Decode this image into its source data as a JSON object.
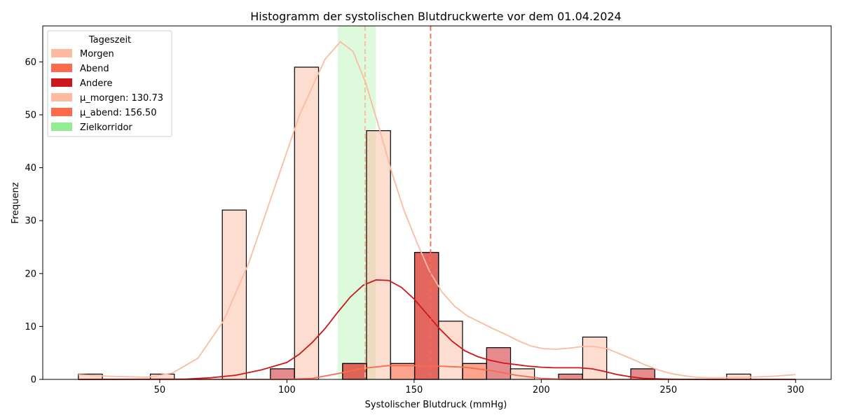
{
  "chart_data": {
    "type": "bar",
    "title": "Histogramm der systolischen Blutdruckwerte vor dem 01.04.2024",
    "xlabel": "Systolischer Blutdruck (mmHg)",
    "ylabel": "Frequenz",
    "xlim": [
      4,
      314
    ],
    "ylim": [
      0,
      66.8
    ],
    "xticks": [
      50,
      100,
      150,
      200,
      250,
      300
    ],
    "yticks": [
      0,
      10,
      20,
      30,
      40,
      50,
      60
    ],
    "grid": false,
    "legend": {
      "title": "Tageszeit",
      "position": "top-left",
      "entries": [
        {
          "label": "Morgen",
          "color": "#fcbba1"
        },
        {
          "label": "Abend",
          "color": "#fb6a4a"
        },
        {
          "label": "Andere",
          "color": "#cb181d"
        },
        {
          "label": "μ_morgen: 130.73",
          "color": "#fcbba1"
        },
        {
          "label": "μ_abend: 156.50",
          "color": "#fb6a4a"
        },
        {
          "label": "Zielkorridor",
          "color": "#90ee90"
        }
      ]
    },
    "target_band": {
      "from": 120,
      "to": 135,
      "color": "#90ee90"
    },
    "mean_lines": [
      {
        "name": "μ_morgen",
        "value": 130.73,
        "color": "#fcbba1"
      },
      {
        "name": "μ_abend",
        "value": 156.5,
        "color": "#fb6a4a"
      }
    ],
    "bin_width": 9.44,
    "series": [
      {
        "name": "Morgen",
        "color": "#fcbba1",
        "bins": [
          {
            "x": 18,
            "value": 1
          },
          {
            "x": 46.3,
            "value": 1
          },
          {
            "x": 74.6,
            "value": 32
          },
          {
            "x": 103,
            "value": 59
          },
          {
            "x": 131.3,
            "value": 47
          },
          {
            "x": 140.8,
            "value": 3
          },
          {
            "x": 159.6,
            "value": 11
          },
          {
            "x": 169.1,
            "value": 3
          },
          {
            "x": 187.9,
            "value": 2
          },
          {
            "x": 216.3,
            "value": 8
          },
          {
            "x": 272.9,
            "value": 1
          }
        ],
        "kde": [
          [
            18,
            0.9
          ],
          [
            30,
            0.6
          ],
          [
            45,
            0.4
          ],
          [
            55,
            1.2
          ],
          [
            65,
            4
          ],
          [
            75,
            11
          ],
          [
            85,
            22
          ],
          [
            95,
            36
          ],
          [
            105,
            50
          ],
          [
            115,
            60.5
          ],
          [
            121,
            63.8
          ],
          [
            126,
            62
          ],
          [
            131,
            56
          ],
          [
            136,
            48
          ],
          [
            141,
            39.5
          ],
          [
            146,
            32
          ],
          [
            151,
            26
          ],
          [
            156,
            20.5
          ],
          [
            161,
            16.5
          ],
          [
            166,
            13.8
          ],
          [
            171,
            12
          ],
          [
            176,
            10.8
          ],
          [
            181,
            9.6
          ],
          [
            186,
            8.5
          ],
          [
            191,
            7.3
          ],
          [
            196,
            6.3
          ],
          [
            201,
            5.8
          ],
          [
            206,
            5.7
          ],
          [
            211,
            5.9
          ],
          [
            216,
            6.2
          ],
          [
            221,
            6.2
          ],
          [
            226,
            5.8
          ],
          [
            231,
            4.8
          ],
          [
            236,
            3.8
          ],
          [
            241,
            2.7
          ],
          [
            246,
            1.8
          ],
          [
            251,
            1.1
          ],
          [
            256,
            0.7
          ],
          [
            261,
            0.4
          ],
          [
            266,
            0.3
          ],
          [
            271,
            0.3
          ],
          [
            276,
            0.35
          ],
          [
            281,
            0.4
          ],
          [
            291,
            0.6
          ],
          [
            300,
            0.9
          ]
        ]
      },
      {
        "name": "Abend",
        "color": "#fb6a4a",
        "bins": [
          {
            "x": 121.9,
            "value": 3
          },
          {
            "x": 140.8,
            "value": 3
          },
          {
            "x": 150.2,
            "value": 24
          },
          {
            "x": 169.1,
            "value": 3
          }
        ],
        "kde": [
          [
            18,
            0
          ],
          [
            100,
            0
          ],
          [
            110,
            0.2
          ],
          [
            120,
            1.1
          ],
          [
            130,
            2.1
          ],
          [
            140,
            2.6
          ],
          [
            150,
            2.6
          ],
          [
            160,
            2.5
          ],
          [
            170,
            2.3
          ],
          [
            180,
            1.7
          ],
          [
            190,
            0.8
          ],
          [
            200,
            0.2
          ],
          [
            210,
            0
          ],
          [
            300,
            0
          ]
        ]
      },
      {
        "name": "Andere",
        "color": "#cb181d",
        "bins": [
          {
            "x": 93.5,
            "value": 2
          },
          {
            "x": 121.9,
            "value": 3
          },
          {
            "x": 150.2,
            "value": 24
          },
          {
            "x": 178.5,
            "value": 6
          },
          {
            "x": 206.8,
            "value": 1
          },
          {
            "x": 235.2,
            "value": 2
          }
        ],
        "kde": [
          [
            18,
            0
          ],
          [
            60,
            0.05
          ],
          [
            70,
            0.3
          ],
          [
            80,
            0.8
          ],
          [
            90,
            1.8
          ],
          [
            100,
            3.2
          ],
          [
            105,
            4.8
          ],
          [
            110,
            7
          ],
          [
            115,
            9.6
          ],
          [
            120,
            12.7
          ],
          [
            125,
            15.6
          ],
          [
            130,
            17.8
          ],
          [
            135,
            18.8
          ],
          [
            140,
            18.7
          ],
          [
            145,
            17.4
          ],
          [
            150,
            15.2
          ],
          [
            155,
            12.4
          ],
          [
            160,
            9.6
          ],
          [
            165,
            7.2
          ],
          [
            170,
            5.4
          ],
          [
            175,
            4.3
          ],
          [
            180,
            3.6
          ],
          [
            185,
            3.1
          ],
          [
            190,
            2.8
          ],
          [
            195,
            2.5
          ],
          [
            200,
            2.3
          ],
          [
            205,
            2.2
          ],
          [
            210,
            2.2
          ],
          [
            215,
            2.2
          ],
          [
            220,
            2
          ],
          [
            225,
            1.5
          ],
          [
            230,
            0.9
          ],
          [
            235,
            0.5
          ],
          [
            240,
            0.2
          ],
          [
            250,
            0.05
          ],
          [
            260,
            0
          ],
          [
            300,
            0
          ]
        ]
      }
    ]
  }
}
